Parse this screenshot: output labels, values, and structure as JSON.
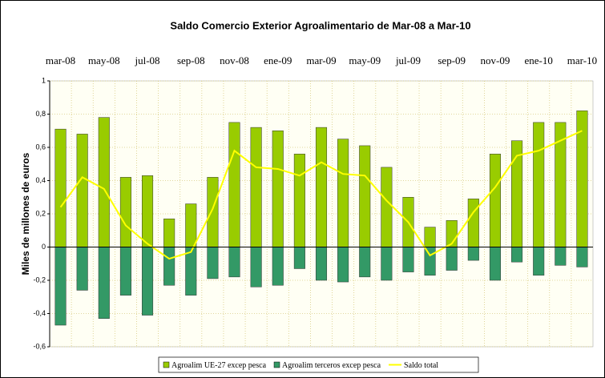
{
  "chart_data": {
    "type": "bar",
    "title": "Saldo Comercio Exterior Agroalimentario de Mar-08 a Mar-10",
    "y_label": "Miles de millones de euros",
    "categories": [
      "mar-08",
      null,
      "may-08",
      null,
      "jul-08",
      null,
      "sep-08",
      null,
      "nov-08",
      null,
      "ene-09",
      null,
      "mar-09",
      null,
      "may-09",
      null,
      "jul-09",
      null,
      "sep-09",
      null,
      "nov-09",
      null,
      "ene-10",
      null,
      "mar-10"
    ],
    "series": [
      {
        "name": "Agroalim UE-27 excep pesca",
        "type": "bar",
        "color": "#99cc00",
        "values": [
          0.71,
          0.68,
          0.78,
          0.42,
          0.43,
          0.17,
          0.26,
          0.42,
          0.75,
          0.72,
          0.7,
          0.56,
          0.72,
          0.65,
          0.61,
          0.48,
          0.3,
          0.12,
          0.16,
          0.29,
          0.56,
          0.64,
          0.75,
          0.75,
          0.82
        ]
      },
      {
        "name": "Agroalim terceros excep pesca",
        "type": "bar",
        "color": "#339966",
        "values": [
          -0.47,
          -0.26,
          -0.43,
          -0.29,
          -0.41,
          -0.23,
          -0.29,
          -0.19,
          -0.18,
          -0.24,
          -0.23,
          -0.13,
          -0.2,
          -0.21,
          -0.18,
          -0.2,
          -0.15,
          -0.17,
          -0.14,
          -0.08,
          -0.2,
          -0.09,
          -0.17,
          -0.11,
          -0.12
        ]
      },
      {
        "name": "Saldo total",
        "type": "line",
        "color": "#ffff00",
        "values": [
          0.24,
          0.42,
          0.35,
          0.13,
          0.02,
          -0.07,
          -0.03,
          0.23,
          0.58,
          0.48,
          0.47,
          0.43,
          0.51,
          0.44,
          0.43,
          0.28,
          0.15,
          -0.05,
          0.02,
          0.21,
          0.36,
          0.55,
          0.58,
          0.64,
          0.7
        ]
      }
    ],
    "ylim": [
      -0.6,
      1
    ],
    "yticks": [
      {
        "value": -0.6,
        "label": "-0,6"
      },
      {
        "value": -0.4,
        "label": "-0,4"
      },
      {
        "value": -0.2,
        "label": "-0,2"
      },
      0,
      {
        "value": 0.2,
        "label": "0,2"
      },
      {
        "value": 0.4,
        "label": "0,4"
      },
      {
        "value": 0.6,
        "label": "0,6"
      },
      {
        "value": 0.8,
        "label": "0,8"
      },
      1
    ],
    "grid": true,
    "legend": "bottom"
  }
}
